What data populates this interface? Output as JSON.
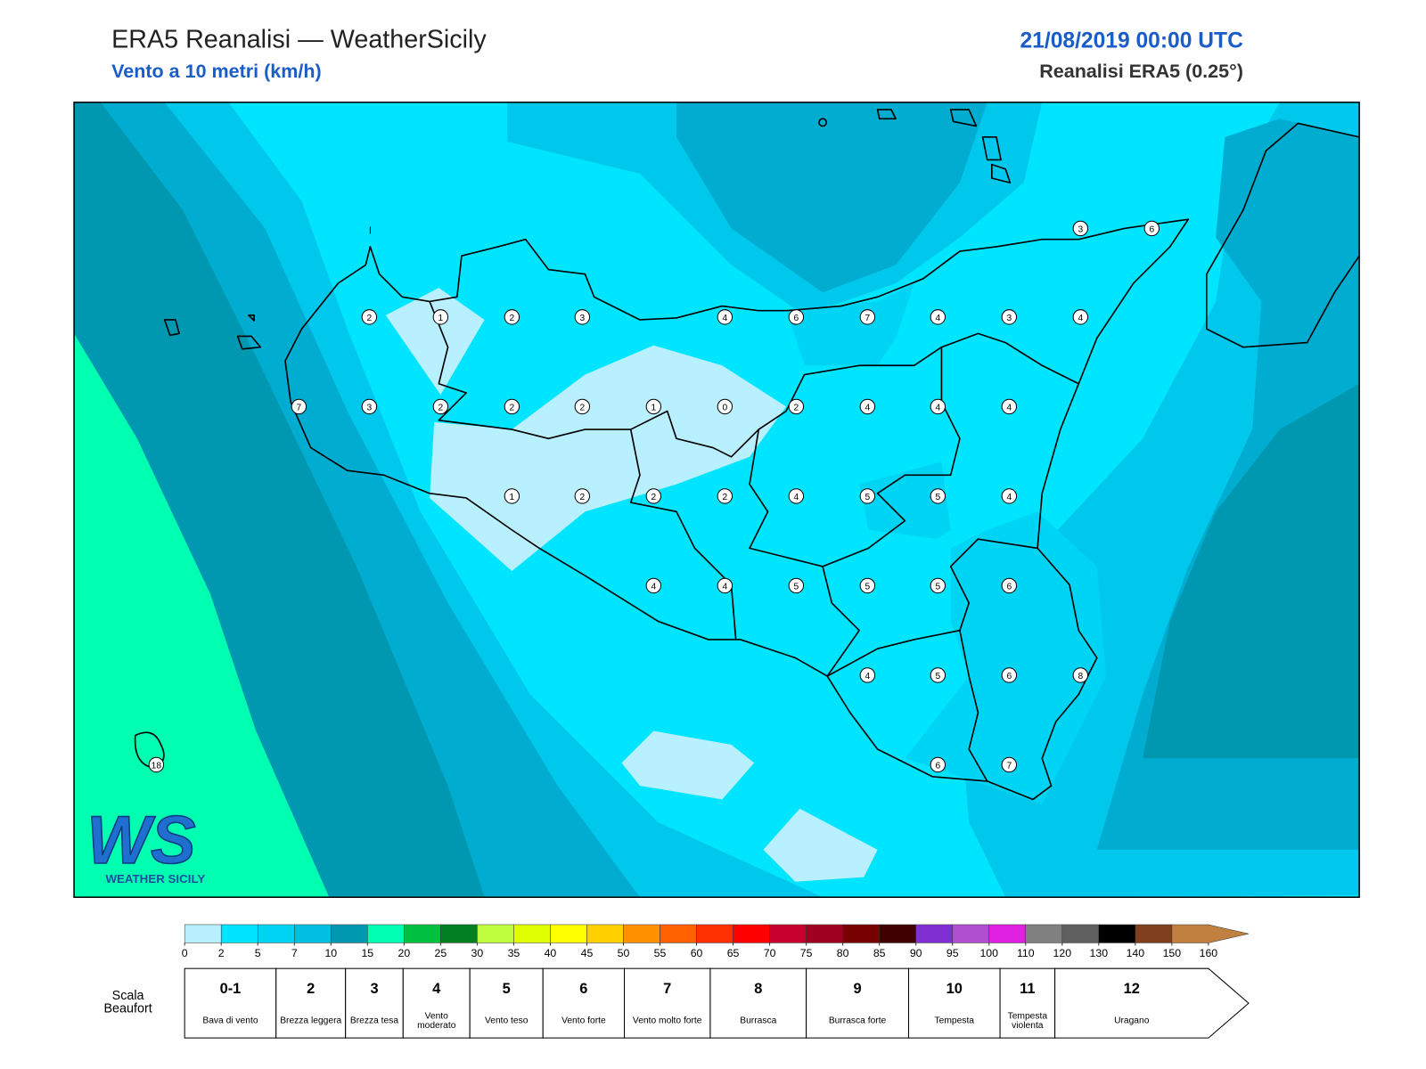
{
  "header": {
    "title": "ERA5 Reanalisi — WeatherSicily",
    "subtitle": "Vento a 10 metri (km/h)",
    "datetime": "21/08/2019 00:00 UTC",
    "source": "Reanalisi ERA5 (0.25°)"
  },
  "map": {
    "stations": [
      2,
      1,
      2,
      3,
      4,
      6,
      7,
      4,
      3,
      4,
      3,
      6,
      7,
      3,
      2,
      2,
      2,
      1,
      0,
      2,
      4,
      4,
      4,
      1,
      2,
      2,
      2,
      4,
      5,
      5,
      4,
      4,
      4,
      5,
      5,
      5,
      6,
      4,
      5,
      6,
      8,
      6,
      7,
      18
    ]
  },
  "colorbar": {
    "ticks": [
      0,
      2,
      5,
      7,
      10,
      15,
      20,
      25,
      30,
      35,
      40,
      45,
      50,
      55,
      60,
      65,
      70,
      75,
      80,
      85,
      90,
      95,
      100,
      110,
      120,
      130,
      140,
      150,
      160
    ],
    "colors": [
      "#b8f0ff",
      "#00e5ff",
      "#00d4f4",
      "#00bfe0",
      "#0098b0",
      "#00ffb0",
      "#00c040",
      "#008020",
      "#c0ff40",
      "#e0ff00",
      "#ffff00",
      "#ffd000",
      "#ff9000",
      "#ff6000",
      "#ff3000",
      "#ff0000",
      "#c80030",
      "#a00020",
      "#780000",
      "#400000",
      "#8030d0",
      "#b050d0",
      "#e020e0",
      "#808080",
      "#606060",
      "#000000",
      "#804020",
      "#c08040"
    ]
  },
  "beaufort": {
    "label": "Scala Beaufort",
    "levels": [
      {
        "number": "0-1",
        "desc": "Bava di vento"
      },
      {
        "number": 2,
        "desc": "Brezza leggera"
      },
      {
        "number": 3,
        "desc": "Brezza tesa"
      },
      {
        "number": 4,
        "desc": "Vento moderato"
      },
      {
        "number": 5,
        "desc": "Vento teso"
      },
      {
        "number": 6,
        "desc": "Vento forte"
      },
      {
        "number": 7,
        "desc": "Vento molto forte"
      },
      {
        "number": 8,
        "desc": "Burrasca"
      },
      {
        "number": 9,
        "desc": "Burrasca forte"
      },
      {
        "number": 10,
        "desc": "Tempesta"
      },
      {
        "number": 11,
        "desc": "Tempesta violenta"
      },
      {
        "number": 12,
        "desc": "Uragano"
      }
    ]
  },
  "logo": {
    "mark": "WS",
    "text": "WEATHER SICILY"
  }
}
